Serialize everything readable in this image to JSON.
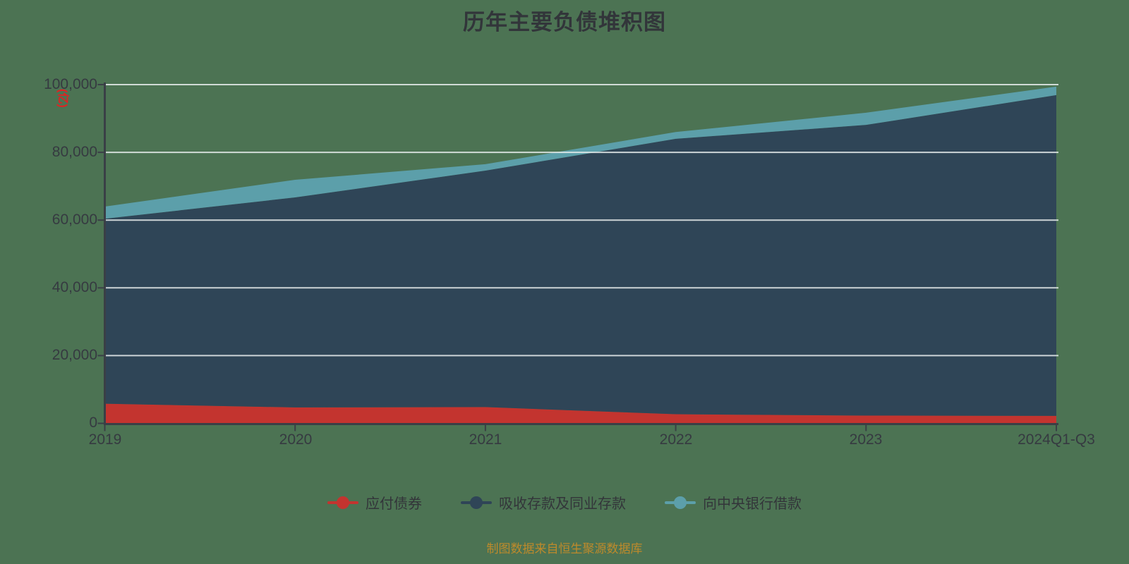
{
  "header": {
    "title": "历年主要负债堆积图"
  },
  "y_axis": {
    "unit": "(亿)"
  },
  "footer": {
    "text": "制图数据来自恒生聚源数据库"
  },
  "colors": {
    "background": "#4C7353",
    "title": "#32353A",
    "axis_label": "#363A41",
    "axis_line": "#3A3F46",
    "gridline": "#E9EDED",
    "footer_text": "#BE8A2B",
    "unit_label": "#E02222"
  },
  "legend": {
    "items": [
      {
        "id": "bonds-payable",
        "label": "应付债券",
        "color": "#C3342F"
      },
      {
        "id": "deposits-and-interbank",
        "label": "吸收存款及同业存款",
        "color": "#2F4557"
      },
      {
        "id": "central-bank-borrowings",
        "label": "向中央银行借款",
        "color": "#5C9FAA"
      }
    ]
  },
  "chart_data": {
    "type": "area",
    "stacked": true,
    "title": "历年主要负债堆积图",
    "ylabel": "(亿)",
    "xlabel": "",
    "categories": [
      "2019",
      "2020",
      "2021",
      "2022",
      "2023",
      "2024Q1-Q3"
    ],
    "series": [
      {
        "id": "bonds-payable",
        "name": "应付债券",
        "color": "#C3342F",
        "values": [
          5800,
          4700,
          4800,
          2700,
          2300,
          2200
        ]
      },
      {
        "id": "deposits-and-interbank",
        "name": "吸收存款及同业存款",
        "color": "#2F4557",
        "values": [
          54600,
          62000,
          69800,
          81300,
          85800,
          94700
        ]
      },
      {
        "id": "central-bank-borrowings",
        "name": "向中央银行借款",
        "color": "#5C9FAA",
        "values": [
          3600,
          5200,
          1900,
          2000,
          3600,
          2500
        ]
      }
    ],
    "ylim": [
      0,
      100000
    ],
    "y_ticks": [
      0,
      20000,
      40000,
      60000,
      80000,
      100000
    ],
    "y_tick_labels": [
      "0",
      "20,000",
      "40,000",
      "60,000",
      "80,000",
      "100,000"
    ],
    "grid": true,
    "legend_position": "bottom"
  }
}
